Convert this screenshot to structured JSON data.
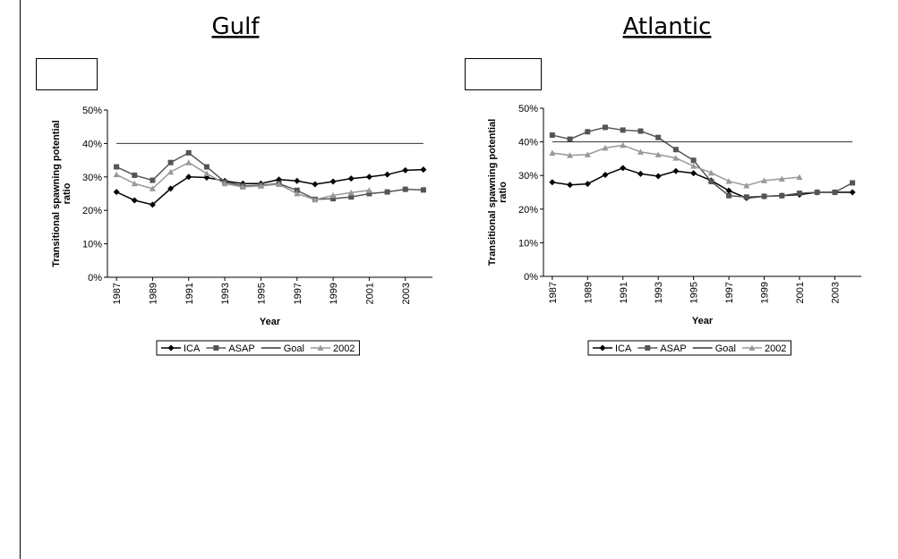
{
  "chart_data": [
    {
      "type": "line",
      "title": "Gulf",
      "x": [
        1987,
        1988,
        1989,
        1990,
        1991,
        1992,
        1993,
        1994,
        1995,
        1996,
        1997,
        1998,
        1999,
        2000,
        2001,
        2002,
        2003,
        2004
      ],
      "series": [
        {
          "name": "ICA",
          "color": "#000000",
          "marker": "diamond",
          "values": [
            25.5,
            23,
            21.7,
            26.5,
            30,
            29.8,
            28.8,
            28,
            28,
            29.2,
            28.8,
            27.8,
            28.6,
            29.5,
            30,
            30.7,
            32,
            32.2
          ]
        },
        {
          "name": "ASAP",
          "color": "#555555",
          "marker": "square",
          "values": [
            33,
            30.5,
            29,
            34.3,
            37.2,
            33,
            28.5,
            27.3,
            27.5,
            28,
            26,
            23.3,
            23.5,
            24,
            25,
            25.5,
            26.3,
            26.1
          ]
        },
        {
          "name": "Goal",
          "color": "#333333",
          "marker": "none",
          "values": [
            40,
            40,
            40,
            40,
            40,
            40,
            40,
            40,
            40,
            40,
            40,
            40,
            40,
            40,
            40,
            40,
            40,
            40
          ]
        },
        {
          "name": "2002",
          "color": "#999999",
          "marker": "triangle",
          "values": [
            30.7,
            28,
            26.5,
            31.5,
            34.3,
            31,
            28,
            27,
            27.3,
            27.8,
            25,
            23.2,
            24.5,
            25.3,
            26,
            null,
            null,
            null
          ]
        }
      ],
      "xlim": [
        1986.5,
        2004.5
      ],
      "ylim": [
        0,
        50
      ],
      "xticks": [
        1987,
        1989,
        1991,
        1993,
        1995,
        1997,
        1999,
        2001,
        2003
      ],
      "yticks": [
        {
          "value": 0,
          "label": "0%"
        },
        {
          "value": 10,
          "label": "10%"
        },
        {
          "value": 20,
          "label": "20%"
        },
        {
          "value": 30,
          "label": "30%"
        },
        {
          "value": 40,
          "label": "40%"
        },
        {
          "value": 50,
          "label": "50%"
        }
      ],
      "x_label": "Year",
      "y_label": [
        "Transitional spawning potential",
        "ratio"
      ],
      "legend": "bottom"
    },
    {
      "type": "line",
      "title": "Atlantic",
      "x": [
        1987,
        1988,
        1989,
        1990,
        1991,
        1992,
        1993,
        1994,
        1995,
        1996,
        1997,
        1998,
        1999,
        2000,
        2001,
        2002,
        2003,
        2004
      ],
      "series": [
        {
          "name": "ICA",
          "color": "#000000",
          "marker": "diamond",
          "values": [
            28,
            27.2,
            27.5,
            30.2,
            32.2,
            30.5,
            29.8,
            31.3,
            30.7,
            28.5,
            25.5,
            23.3,
            23.8,
            24,
            24.3,
            25,
            25,
            25
          ]
        },
        {
          "name": "ASAP",
          "color": "#555555",
          "marker": "square",
          "values": [
            42,
            40.8,
            43,
            44.3,
            43.5,
            43.2,
            41.3,
            37.7,
            34.5,
            28.2,
            24,
            23.6,
            23.8,
            24,
            24.7,
            25,
            25,
            27.8
          ]
        },
        {
          "name": "Goal",
          "color": "#333333",
          "marker": "none",
          "values": [
            40,
            40,
            40,
            40,
            40,
            40,
            40,
            40,
            40,
            40,
            40,
            40,
            40,
            40,
            40,
            40,
            40,
            40
          ]
        },
        {
          "name": "2002",
          "color": "#999999",
          "marker": "triangle",
          "values": [
            36.7,
            36,
            36.2,
            38.2,
            39,
            37,
            36.2,
            35.2,
            32.8,
            30.8,
            28.3,
            27,
            28.5,
            29,
            29.5,
            null,
            null,
            null
          ]
        }
      ],
      "xlim": [
        1986.5,
        2004.5
      ],
      "ylim": [
        0,
        50
      ],
      "xticks": [
        1987,
        1989,
        1991,
        1993,
        1995,
        1997,
        1999,
        2001,
        2003
      ],
      "yticks": [
        {
          "value": 0,
          "label": "0%"
        },
        {
          "value": 10,
          "label": "10%"
        },
        {
          "value": 20,
          "label": "20%"
        },
        {
          "value": 30,
          "label": "30%"
        },
        {
          "value": 40,
          "label": "40%"
        },
        {
          "value": 50,
          "label": "50%"
        }
      ],
      "x_label": "Year",
      "y_label": [
        "Transitional spawning potential",
        "ratio"
      ],
      "legend": "bottom"
    }
  ]
}
